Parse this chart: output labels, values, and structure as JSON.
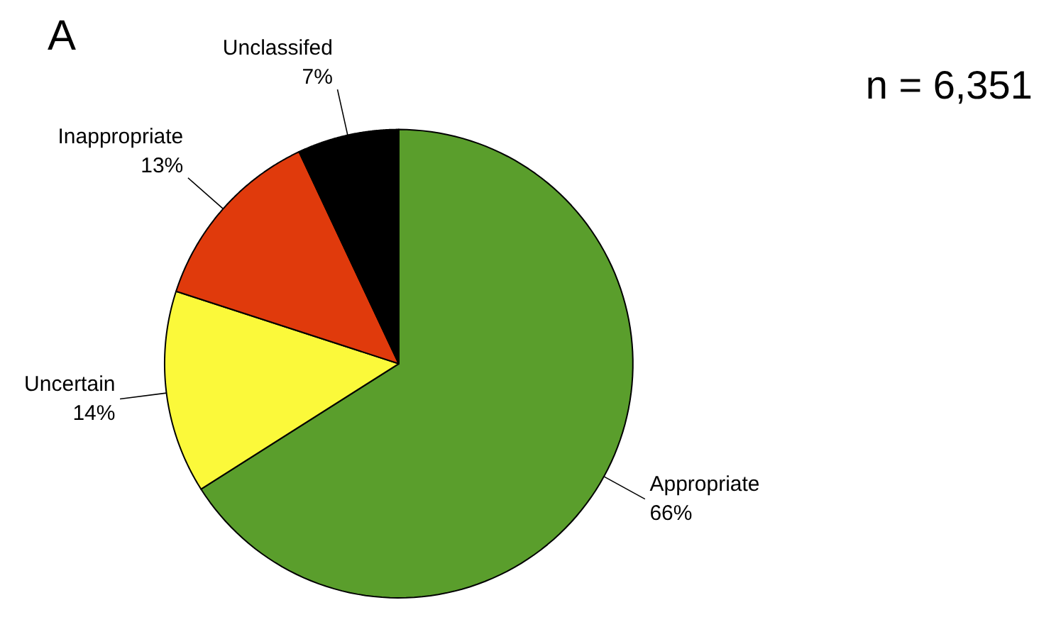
{
  "chart_data": {
    "type": "pie",
    "title": "A",
    "categories": [
      "Appropriate",
      "Uncertain",
      "Inappropriate",
      "Unclassifed"
    ],
    "values": [
      66,
      14,
      13,
      7
    ],
    "value_labels": [
      "66%",
      "14%",
      "13%",
      "7%"
    ],
    "colors": [
      "#5a9e2c",
      "#fbf93a",
      "#e03a0c",
      "#000000"
    ],
    "annotations": [
      "n = 6,351"
    ]
  }
}
